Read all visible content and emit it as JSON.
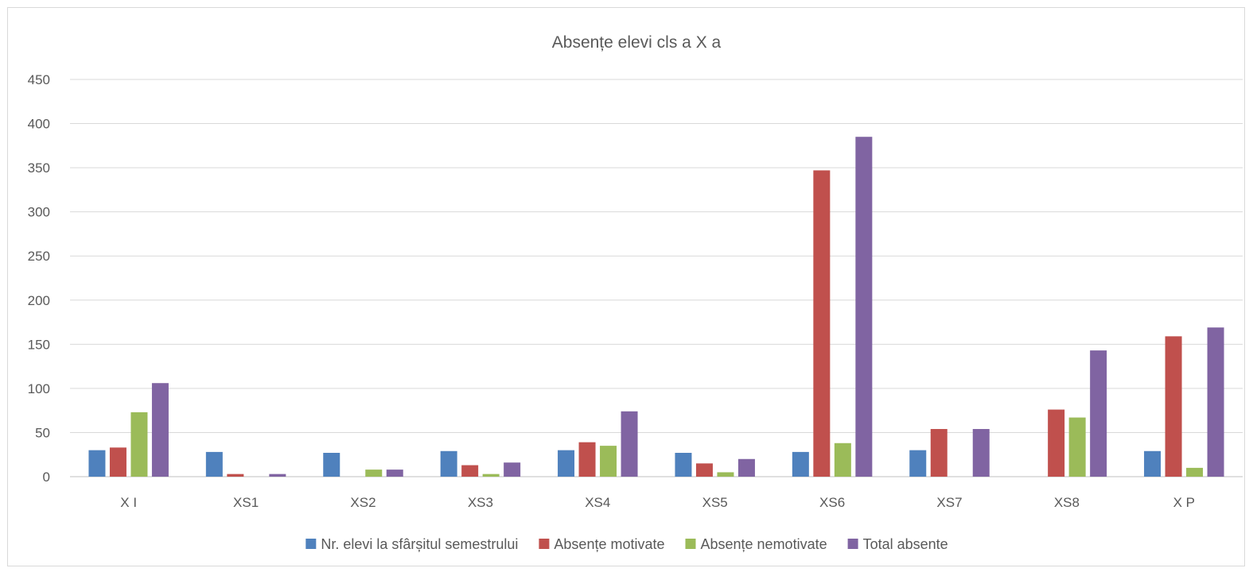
{
  "chart_data": {
    "type": "bar",
    "title": "Absențe elevi cls a X a",
    "xlabel": "",
    "ylabel": "",
    "ylim": [
      0,
      450
    ],
    "yticks": [
      0,
      50,
      100,
      150,
      200,
      250,
      300,
      350,
      400,
      450
    ],
    "grid": true,
    "legend_position": "bottom",
    "categories": [
      "X I",
      "XS1",
      "XS2",
      "XS3",
      "XS4",
      "XS5",
      "XS6",
      "XS7",
      "XS8",
      "X P"
    ],
    "series": [
      {
        "name": "Nr. elevi la sfârșitul semestrului",
        "color": "#4f81bd",
        "values": [
          30,
          28,
          27,
          29,
          30,
          27,
          28,
          30,
          0,
          29
        ]
      },
      {
        "name": "Absențe motivate",
        "color": "#c0504d",
        "values": [
          33,
          3,
          0,
          13,
          39,
          15,
          347,
          54,
          76,
          159
        ]
      },
      {
        "name": "Absențe nemotivate",
        "color": "#9bbb59",
        "values": [
          73,
          0,
          8,
          3,
          35,
          5,
          38,
          0,
          67,
          10
        ]
      },
      {
        "name": "Total absente",
        "color": "#8064a2",
        "values": [
          106,
          3,
          8,
          16,
          74,
          20,
          385,
          54,
          143,
          169
        ]
      }
    ]
  }
}
